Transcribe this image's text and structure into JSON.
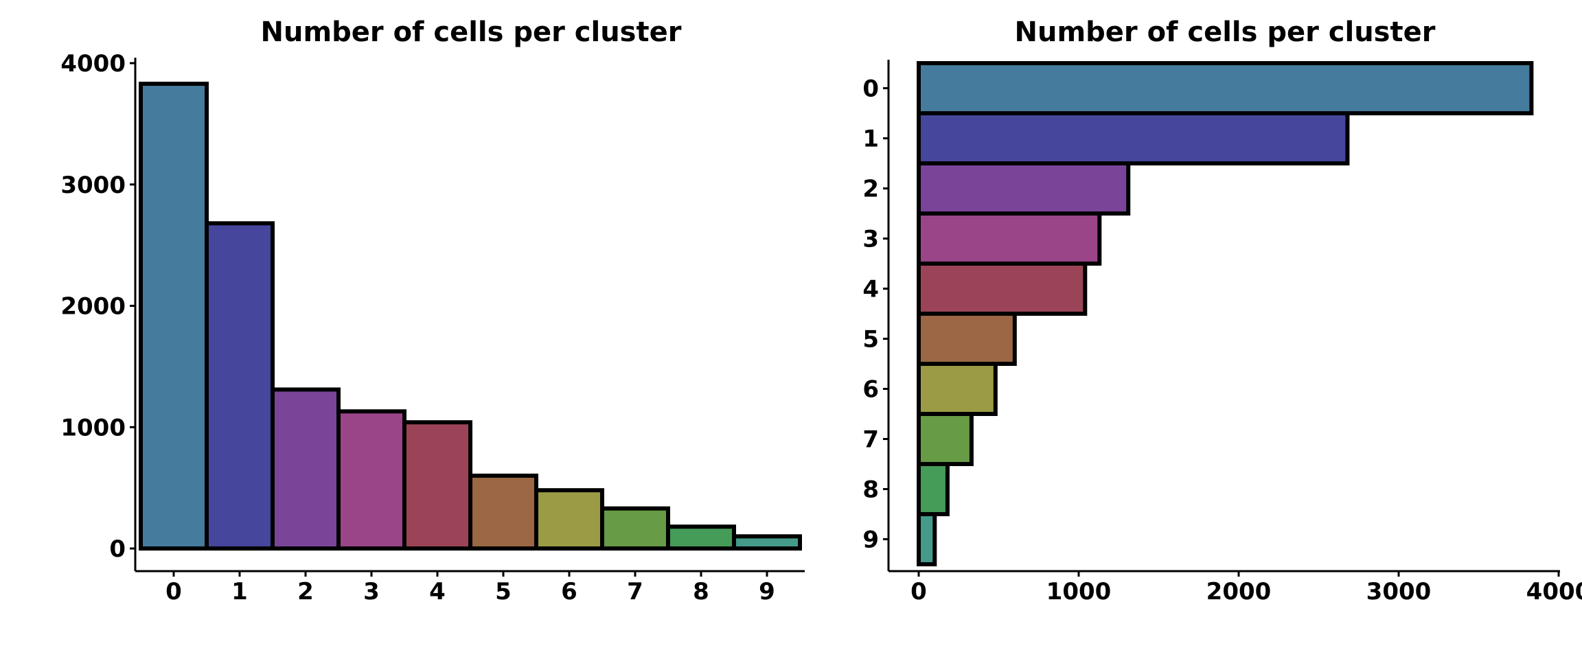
{
  "chart_data": [
    {
      "type": "bar",
      "orientation": "vertical",
      "title": "Number of cells per cluster",
      "xlabel": "",
      "ylabel": "",
      "categories": [
        "0",
        "1",
        "2",
        "3",
        "4",
        "5",
        "6",
        "7",
        "8",
        "9"
      ],
      "values": [
        3830,
        2680,
        1310,
        1130,
        1040,
        600,
        480,
        330,
        180,
        100
      ],
      "colors": [
        "#457b9d",
        "#45469c",
        "#7a4599",
        "#9b4589",
        "#9b4458",
        "#9b6745",
        "#9b9b45",
        "#679b45",
        "#459b58",
        "#459b89"
      ],
      "yticks": [
        "0",
        "1000",
        "2000",
        "3000",
        "4000"
      ],
      "ylim": [
        0,
        4000
      ],
      "grid": false,
      "legend": "none"
    },
    {
      "type": "bar",
      "orientation": "horizontal",
      "title": "Number of cells per cluster",
      "xlabel": "",
      "ylabel": "",
      "categories": [
        "0",
        "1",
        "2",
        "3",
        "4",
        "5",
        "6",
        "7",
        "8",
        "9"
      ],
      "values": [
        3830,
        2680,
        1310,
        1130,
        1040,
        600,
        480,
        330,
        180,
        100
      ],
      "colors": [
        "#457b9d",
        "#45469c",
        "#7a4599",
        "#9b4589",
        "#9b4458",
        "#9b6745",
        "#9b9b45",
        "#679b45",
        "#459b58",
        "#459b89"
      ],
      "xticks": [
        "0",
        "1000",
        "2000",
        "3000",
        "4000"
      ],
      "xlim": [
        0,
        4000
      ],
      "grid": false,
      "legend": "none"
    }
  ]
}
